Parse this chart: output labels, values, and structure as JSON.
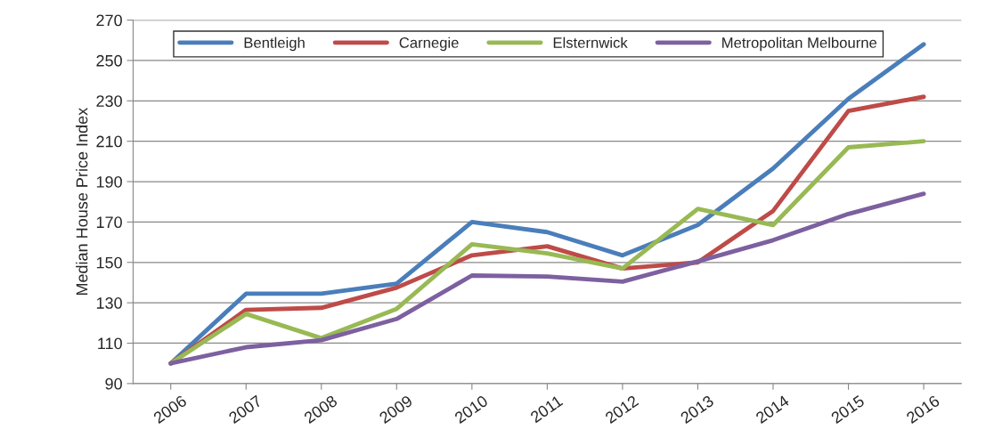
{
  "chart_data": {
    "type": "line",
    "ylabel": "Median House Price Index",
    "categories": [
      "2006",
      "2007",
      "2008",
      "2009",
      "2010",
      "2011",
      "2012",
      "2013",
      "2014",
      "2015",
      "2016"
    ],
    "series": [
      {
        "name": "Bentleigh",
        "color": "#4a7ebb",
        "values": [
          100,
          134.5,
          134.5,
          139.5,
          170,
          165,
          153.5,
          168.5,
          196.5,
          231,
          258
        ]
      },
      {
        "name": "Carnegie",
        "color": "#be4b48",
        "values": [
          100,
          126.5,
          127.5,
          137.5,
          153.5,
          158,
          147,
          150,
          175.5,
          225,
          232
        ]
      },
      {
        "name": "Elsternwick",
        "color": "#98b954",
        "values": [
          100,
          124.5,
          112.5,
          127,
          159,
          154.5,
          147,
          176.5,
          168.5,
          207,
          210
        ]
      },
      {
        "name": "Metropolitan Melbourne",
        "color": "#7d60a0",
        "values": [
          100,
          108,
          111.5,
          122,
          143.5,
          143,
          140.5,
          150.5,
          161,
          174,
          184
        ]
      }
    ],
    "ylim": [
      90,
      270
    ],
    "yticks": [
      90,
      110,
      130,
      150,
      170,
      190,
      210,
      230,
      250,
      270
    ],
    "grid": "y",
    "legend": "top",
    "marker": "none",
    "line_style": "solid"
  }
}
